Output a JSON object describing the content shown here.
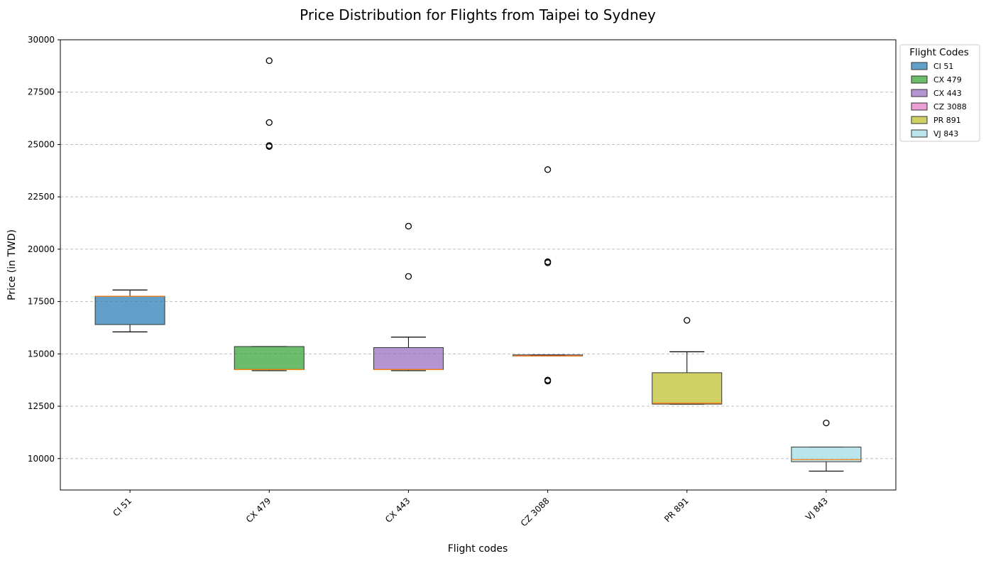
{
  "chart_data": {
    "type": "box",
    "title": "Price Distribution for Flights from Taipei to Sydney",
    "xlabel": "Flight codes",
    "ylabel": "Price (in TWD)",
    "ylim": [
      8500,
      30000
    ],
    "yticks": [
      10000,
      12500,
      15000,
      17500,
      20000,
      22500,
      25000,
      27500,
      30000
    ],
    "grid": "y-dashed",
    "legend": {
      "title": "Flight Codes",
      "placement": "outside-top-right"
    },
    "series": [
      {
        "name": "CI 51",
        "color": "#1f77b4",
        "whisker_low": 16050,
        "q1": 16400,
        "median": 17750,
        "q3": 17750,
        "whisker_high": 18050,
        "outliers": []
      },
      {
        "name": "CX 479",
        "color": "#2ca02c",
        "whisker_low": 14200,
        "q1": 14250,
        "median": 14250,
        "q3": 15350,
        "whisker_high": 15350,
        "outliers": [
          24900,
          24950,
          26050,
          29000
        ]
      },
      {
        "name": "CX 443",
        "color": "#9467bd",
        "whisker_low": 14200,
        "q1": 14250,
        "median": 14250,
        "q3": 15300,
        "whisker_high": 15800,
        "outliers": [
          18700,
          21100
        ]
      },
      {
        "name": "CZ 3088",
        "color": "#e377c2",
        "whisker_low": 14900,
        "q1": 14900,
        "median": 14900,
        "q3": 14950,
        "whisker_high": 14950,
        "outliers": [
          13700,
          13750,
          19350,
          19400,
          23800
        ]
      },
      {
        "name": "PR 891",
        "color": "#bcbd22",
        "whisker_low": 12600,
        "q1": 12600,
        "median": 12650,
        "q3": 14100,
        "whisker_high": 15100,
        "outliers": [
          16600
        ]
      },
      {
        "name": "VJ 843",
        "color": "#9edae5",
        "whisker_low": 9400,
        "q1": 9850,
        "median": 9950,
        "q3": 10550,
        "whisker_high": 10550,
        "outliers": [
          11700
        ]
      }
    ]
  }
}
